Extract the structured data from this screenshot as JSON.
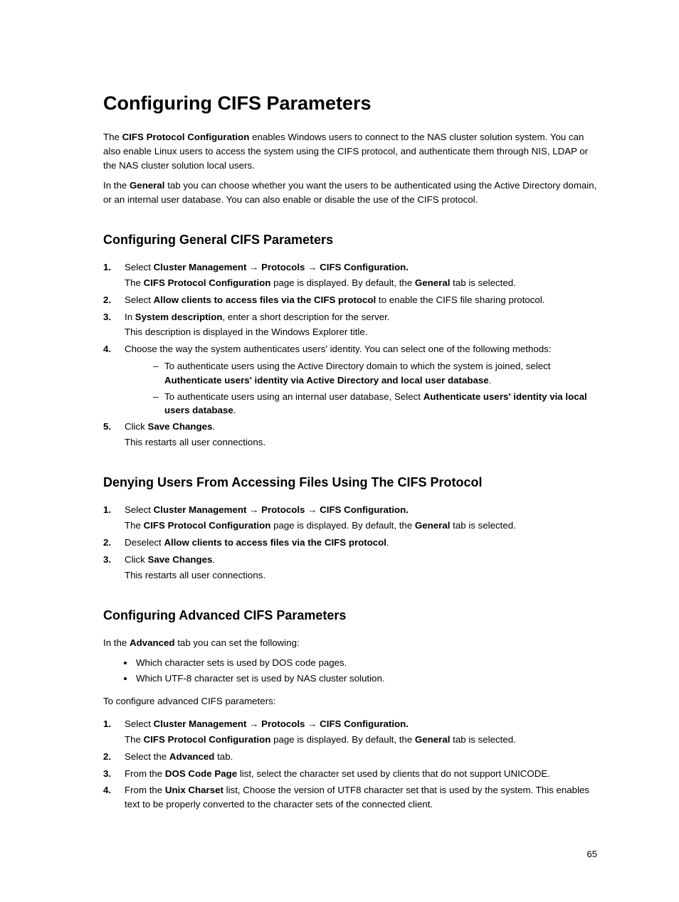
{
  "title": "Configuring CIFS Parameters",
  "intro1_a": "The ",
  "intro1_bold": "CIFS Protocol Configuration",
  "intro1_b": " enables Windows users to connect to the NAS cluster solution system. You can also enable Linux users to access the system using the CIFS protocol, and authenticate them through NIS, LDAP or the NAS cluster solution local users.",
  "intro2_a": "In the ",
  "intro2_bold": "General",
  "intro2_b": " tab you can choose whether you want the users to be authenticated using the Active Directory domain, or an internal user database. You can also enable or disable the use of the CIFS protocol.",
  "sections": {
    "s1": {
      "heading": "Configuring General CIFS Parameters",
      "steps": [
        {
          "a": "Select ",
          "b1": "Cluster Management",
          "arr1": " → ",
          "b2": "Protocols",
          "arr2": " → ",
          "b3": "CIFS Configuration.",
          "f_a": "The ",
          "f_b1": "CIFS Protocol Configuration",
          "f_mid": " page is displayed. By default, the ",
          "f_b2": "General",
          "f_end": " tab is selected."
        },
        {
          "a": "Select ",
          "b1": "Allow clients to access files via the CIFS protocol",
          "b": " to enable the CIFS file sharing protocol."
        },
        {
          "a": "In ",
          "b1": "System description",
          "b": ", enter a short description for the server.",
          "f": "This description is displayed in the Windows Explorer title."
        },
        {
          "a": "Choose the way the system authenticates users' identity. You can select one of the following methods:",
          "sub": [
            {
              "pre": "To authenticate users using the Active Directory domain to which the system is joined, select ",
              "bold": "Authenticate users' identity via Active Directory and local user database",
              "post": "."
            },
            {
              "pre": "To authenticate users using an internal user database, Select ",
              "bold": "Authenticate users' identity via local users database",
              "post": "."
            }
          ]
        },
        {
          "a": "Click ",
          "b1": "Save Changes",
          "b": ".",
          "f": "This restarts all user connections."
        }
      ]
    },
    "s2": {
      "heading": "Denying Users From Accessing Files Using The CIFS Protocol",
      "steps": [
        {
          "a": "Select ",
          "b1": "Cluster Management",
          "arr1": " → ",
          "b2": "Protocols",
          "arr2": " → ",
          "b3": "CIFS Configuration.",
          "f_a": "The ",
          "f_b1": "CIFS Protocol Configuration",
          "f_mid": " page is displayed. By default, the ",
          "f_b2": "General",
          "f_end": " tab is selected."
        },
        {
          "a": "Deselect ",
          "b1": "Allow clients to access files via the CIFS protocol",
          "b": "."
        },
        {
          "a": "Click ",
          "b1": "Save Changes",
          "b": ".",
          "f": "This restarts all user connections."
        }
      ]
    },
    "s3": {
      "heading": "Configuring Advanced CIFS Parameters",
      "lead_a": "In the ",
      "lead_bold": "Advanced",
      "lead_b": " tab you can set the following:",
      "bullets": [
        "Which character sets is used by DOS code pages.",
        "Which UTF-8 character set is used by NAS cluster solution."
      ],
      "lead2": "To configure advanced CIFS parameters:",
      "steps": [
        {
          "a": "Select ",
          "b1": "Cluster Management",
          "arr1": " → ",
          "b2": "Protocols",
          "arr2": " → ",
          "b3": "CIFS Configuration.",
          "f_a": "The ",
          "f_b1": "CIFS Protocol Configuration",
          "f_mid": " page is displayed. By default, the ",
          "f_b2": "General",
          "f_end": " tab is selected."
        },
        {
          "a": "Select the ",
          "b1": "Advanced",
          "b": " tab."
        },
        {
          "a": "From the ",
          "b1": "DOS Code Page",
          "b": " list, select the character set used by clients that do not support UNICODE."
        },
        {
          "a": "From the ",
          "b1": "Unix Charset",
          "b": " list, Choose the version of UTF8 character set that is used by the system. This enables text to be properly converted to the character sets of the connected client."
        }
      ]
    }
  },
  "page_number": "65"
}
